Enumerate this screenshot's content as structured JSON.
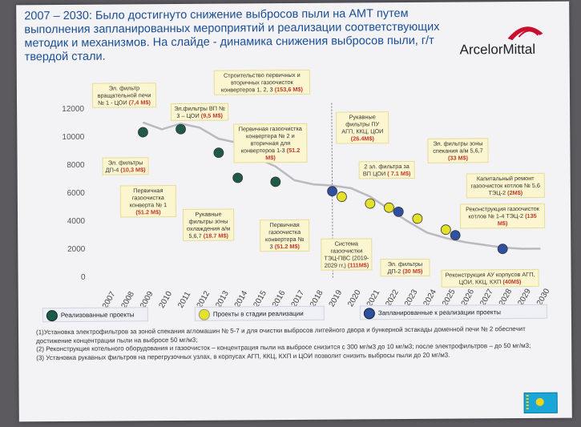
{
  "title": "2007 – 2030: Было достигнуто снижение выбросов пыли на АМТ путем выполнения запланированных мероприятий и реализации соответствующих методик и механизмов. На слайде - динамика снижения выбросов пыли, г/т твердой стали.",
  "logo": {
    "text": "ArcelorMittal",
    "color": "#c8102e"
  },
  "chart_data": {
    "type": "line",
    "x": [
      2007,
      2008,
      2009,
      2010,
      2011,
      2012,
      2013,
      2014,
      2015,
      2016,
      2017,
      2018,
      2019,
      2020,
      2021,
      2022,
      2023,
      2024,
      2025,
      2026,
      2027,
      2028,
      2029,
      2030
    ],
    "ylim": [
      0,
      12000
    ],
    "yticks": [
      0,
      2000,
      4000,
      6000,
      8000,
      10000,
      12000
    ],
    "series": [
      {
        "values": [
          null,
          null,
          11000,
          10500,
          10900,
          10600,
          9800,
          9500,
          8400,
          7800,
          6800,
          6500,
          6400,
          6200,
          5600,
          4700,
          3800,
          3000,
          2600,
          2300,
          2100,
          1900,
          1800,
          1800
        ]
      }
    ],
    "points": [
      {
        "x": 2009,
        "y": 10300,
        "status": "done"
      },
      {
        "x": 2011,
        "y": 10500,
        "status": "done"
      },
      {
        "x": 2013,
        "y": 8800,
        "status": "done"
      },
      {
        "x": 2014,
        "y": 7000,
        "status": "done"
      },
      {
        "x": 2016,
        "y": 6700,
        "status": "done"
      },
      {
        "x": 2019,
        "y": 6000,
        "status": "planned"
      },
      {
        "x": 2019.5,
        "y": 5600,
        "status": "inprogress"
      },
      {
        "x": 2021,
        "y": 5100,
        "status": "inprogress"
      },
      {
        "x": 2022,
        "y": 4800,
        "status": "inprogress"
      },
      {
        "x": 2022.5,
        "y": 4500,
        "status": "planned"
      },
      {
        "x": 2023.5,
        "y": 4000,
        "status": "inprogress"
      },
      {
        "x": 2025,
        "y": 3200,
        "status": "inprogress"
      },
      {
        "x": 2025.5,
        "y": 2800,
        "status": "planned"
      },
      {
        "x": 2028,
        "y": 1800,
        "status": "planned"
      }
    ],
    "colors": {
      "done": "#1f5a46",
      "inprogress": "#e5e02a",
      "planned": "#2f4fa0",
      "line": "#b9b9be"
    }
  },
  "annotations": [
    {
      "text": "Эл. фильтр вращательной печи № 1 - ЦОИ",
      "value": "(7,4 M$)"
    },
    {
      "text": "Эл.фильтры ВП № 3 – ЦОИ",
      "value": "(9,5 M$)"
    },
    {
      "text": "Строительство первичных и вторичных газоочисток конвертеров 1, 2, 3",
      "value": "(153,6 M$)"
    },
    {
      "text": "Первичная газоочистка конвертера № 2 и вторичная для конвертеров 1-3",
      "value": "(51.2 M$)"
    },
    {
      "text": "Эл. фильтры ДП-4",
      "value": "(10,3 M$)"
    },
    {
      "text": "Первичная газоочистка конверта № 1",
      "value": "(51.2 M$)"
    },
    {
      "text": "Рукавные фильтры зоны охлаждения а/м 5,6,7",
      "value": "(18.7 M$)"
    },
    {
      "text": "Первичная газоочистка конвертера № 3",
      "value": "(51.2 M$)"
    },
    {
      "text": "Рукавные фильтры ПУ АГП, ККЦ, ЦОИ",
      "value": "(26.4M$)"
    },
    {
      "text": "2 эл. фильтра за ВП ЦОИ",
      "value": "( 7.1 M$)"
    },
    {
      "text": "Эл. фильтры зоны спекания а/м 5,6,7",
      "value": "(33 M$)"
    },
    {
      "text": "Капитальный ремонт газоочисток котлов № 5,6 ТЭЦ-2",
      "value": "(2M$)"
    },
    {
      "text": "Реконструкция газоочисток котлов № 1-4 ТЭЦ-2",
      "value": "(135 M$)"
    },
    {
      "text": "Система газоочистки ТЭЦ-ПВС (2019-2029 гг.)",
      "value": "(111M$)"
    },
    {
      "text": "Эл. фильтры ДП-2",
      "value": "(30 M$)"
    },
    {
      "text": "Реконструкция АУ корпусов АГП, ЦОИ, ККЦ, КХП",
      "value": "(40M$)"
    }
  ],
  "legend": {
    "done": "Реализованные проекты",
    "inprogress": "Проекты в стадии реализации",
    "planned": "Запланированные к реализации проекты"
  },
  "notes": [
    "(1)Установка электрофильтров за зоной спекания агломашин № 5-7 и для очистки выбросов литейного двора и бункерной эстакады доменной печи № 2 обеспечит достижение концентрации пыли на выбросе 50 мг/м3;",
    "(2) Реконструкция котельного оборудования и газоочисток – концентрация пыли на выбросе снизится с 300 мг/м3 до 10 мг/м3; после электрофильтров – до 50 мг/м3;",
    "(3) Установка рукавных фильтров на перегрузочных узлах, в корпусах АГП, ККЦ, КХП и ЦОИ позволит снизить выбросы пыли до 20 мг/м3."
  ]
}
